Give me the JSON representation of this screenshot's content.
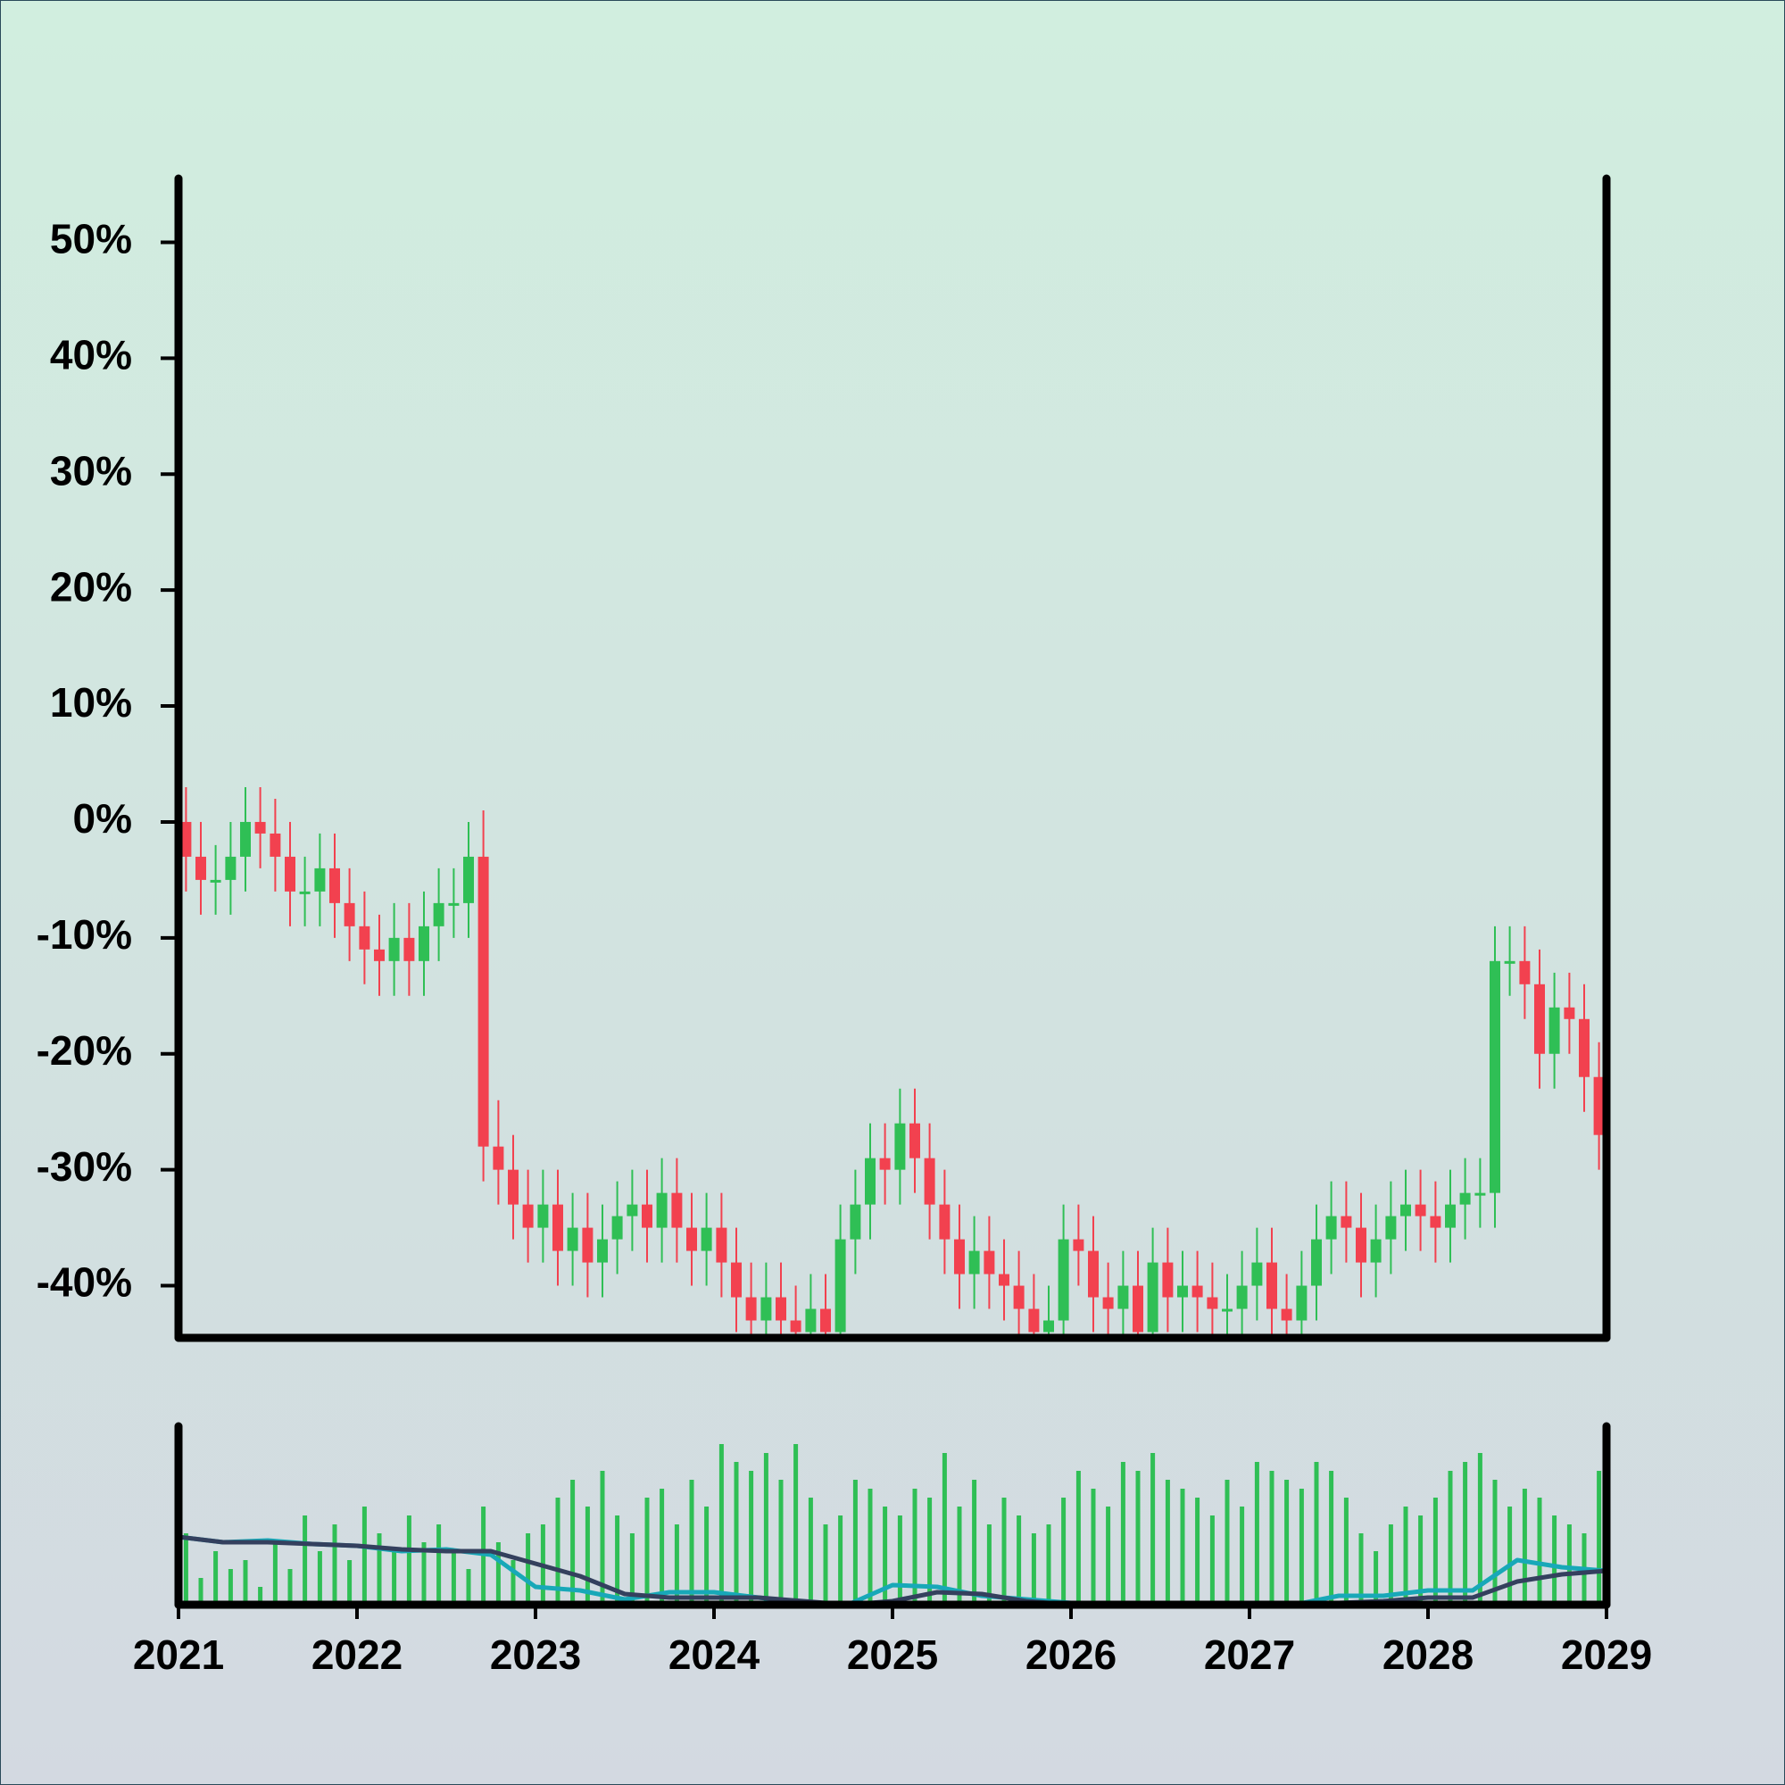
{
  "chart_data": {
    "type": "candlestick",
    "x": [
      2021.042,
      2021.125,
      2021.208,
      2021.292,
      2021.375,
      2021.458,
      2021.542,
      2021.625,
      2021.708,
      2021.792,
      2021.875,
      2021.958,
      2022.042,
      2022.125,
      2022.208,
      2022.292,
      2022.375,
      2022.458,
      2022.542,
      2022.625,
      2022.708,
      2022.792,
      2022.875,
      2022.958,
      2023.042,
      2023.125,
      2023.208,
      2023.292,
      2023.375,
      2023.458,
      2023.542,
      2023.625,
      2023.708,
      2023.792,
      2023.875,
      2023.958,
      2024.042,
      2024.125,
      2024.208,
      2024.292,
      2024.375,
      2024.458,
      2024.542,
      2024.625,
      2024.708,
      2024.792,
      2024.875,
      2024.958,
      2025.042,
      2025.125,
      2025.208,
      2025.292,
      2025.375,
      2025.458,
      2025.542,
      2025.625,
      2025.708,
      2025.792,
      2025.875,
      2025.958,
      2026.042,
      2026.125,
      2026.208,
      2026.292,
      2026.375,
      2026.458,
      2026.542,
      2026.625,
      2026.708,
      2026.792,
      2026.875,
      2026.958,
      2027.042,
      2027.125,
      2027.208,
      2027.292,
      2027.375,
      2027.458,
      2027.542,
      2027.625,
      2027.708,
      2027.792,
      2027.875,
      2027.958,
      2028.042,
      2028.125,
      2028.208,
      2028.292,
      2028.375,
      2028.458,
      2028.542,
      2028.625,
      2028.708,
      2028.792,
      2028.875,
      2028.958
    ],
    "open": [
      0,
      -3,
      -5,
      -5,
      -3,
      0,
      -1,
      -3,
      -6,
      -6,
      -4,
      -7,
      -9,
      -11,
      -12,
      -10,
      -12,
      -9,
      -7,
      -7,
      -3,
      -28,
      -30,
      -33,
      -35,
      -33,
      -37,
      -35,
      -38,
      -36,
      -34,
      -33,
      -35,
      -32,
      -35,
      -37,
      -35,
      -38,
      -41,
      -43,
      -41,
      -43,
      -44,
      -42,
      -44,
      -36,
      -33,
      -29,
      -30,
      -26,
      -29,
      -33,
      -36,
      -39,
      -37,
      -39,
      -40,
      -42,
      -44,
      -43,
      -36,
      -37,
      -41,
      -42,
      -40,
      -44,
      -38,
      -41,
      -40,
      -41,
      -42,
      -42,
      -40,
      -38,
      -42,
      -43,
      -40,
      -36,
      -34,
      -35,
      -38,
      -36,
      -34,
      -33,
      -34,
      -35,
      -33,
      -32,
      -32,
      -12,
      -12,
      -14,
      -20,
      -16,
      -17,
      -22
    ],
    "high": [
      3,
      0,
      -2,
      0,
      3,
      3,
      2,
      0,
      -3,
      -1,
      -1,
      -4,
      -6,
      -8,
      -7,
      -7,
      -6,
      -4,
      -4,
      0,
      1,
      -24,
      -27,
      -30,
      -30,
      -30,
      -32,
      -32,
      -33,
      -31,
      -30,
      -30,
      -29,
      -29,
      -32,
      -32,
      -32,
      -35,
      -38,
      -38,
      -38,
      -40,
      -39,
      -39,
      -33,
      -30,
      -26,
      -26,
      -23,
      -23,
      -26,
      -30,
      -33,
      -34,
      -34,
      -36,
      -37,
      -39,
      -40,
      -33,
      -33,
      -34,
      -38,
      -37,
      -37,
      -35,
      -35,
      -37,
      -37,
      -38,
      -39,
      -37,
      -35,
      -35,
      -39,
      -37,
      -33,
      -31,
      -31,
      -32,
      -33,
      -31,
      -30,
      -30,
      -31,
      -30,
      -29,
      -29,
      -9,
      -9,
      -9,
      -11,
      -13,
      -13,
      -14,
      -19
    ],
    "low": [
      -6,
      -8,
      -8,
      -8,
      -6,
      -4,
      -6,
      -9,
      -9,
      -9,
      -10,
      -12,
      -14,
      -15,
      -15,
      -15,
      -15,
      -12,
      -10,
      -10,
      -31,
      -33,
      -36,
      -38,
      -38,
      -40,
      -40,
      -41,
      -41,
      -39,
      -37,
      -38,
      -38,
      -38,
      -40,
      -40,
      -41,
      -44,
      -46,
      -46,
      -46,
      -47,
      -47,
      -47,
      -47,
      -39,
      -36,
      -33,
      -33,
      -32,
      -36,
      -39,
      -42,
      -42,
      -42,
      -43,
      -45,
      -47,
      -47,
      -46,
      -40,
      -44,
      -45,
      -45,
      -47,
      -47,
      -44,
      -44,
      -44,
      -45,
      -45,
      -45,
      -43,
      -45,
      -46,
      -46,
      -43,
      -39,
      -38,
      -41,
      -41,
      -39,
      -37,
      -37,
      -38,
      -38,
      -36,
      -35,
      -35,
      -15,
      -17,
      -23,
      -23,
      -20,
      -25,
      -30
    ],
    "close": [
      -3,
      -5,
      -5,
      -3,
      0,
      -1,
      -3,
      -6,
      -6,
      -4,
      -7,
      -9,
      -11,
      -12,
      -10,
      -12,
      -9,
      -7,
      -7,
      -3,
      -28,
      -30,
      -33,
      -35,
      -33,
      -37,
      -35,
      -38,
      -36,
      -34,
      -33,
      -35,
      -32,
      -35,
      -37,
      -35,
      -38,
      -41,
      -43,
      -41,
      -43,
      -44,
      -42,
      -44,
      -36,
      -33,
      -29,
      -30,
      -26,
      -29,
      -33,
      -36,
      -39,
      -37,
      -39,
      -40,
      -42,
      -44,
      -43,
      -36,
      -37,
      -41,
      -42,
      -40,
      -44,
      -38,
      -41,
      -40,
      -41,
      -42,
      -42,
      -40,
      -38,
      -42,
      -43,
      -40,
      -36,
      -34,
      -35,
      -38,
      -36,
      -34,
      -33,
      -34,
      -35,
      -33,
      -32,
      -32,
      -12,
      -12,
      -14,
      -20,
      -16,
      -17,
      -22,
      -27
    ],
    "up_color": "#2fbf55",
    "down_color": "#f2414f",
    "xlim": [
      2021,
      2029
    ],
    "xticks": [
      2021,
      2022,
      2023,
      2024,
      2025,
      2026,
      2027,
      2028,
      2029
    ],
    "ylim": [
      -44.5,
      55.5
    ],
    "yticks": [
      {
        "value": -40,
        "label": "-40%"
      },
      {
        "value": -30,
        "label": "-30%"
      },
      {
        "value": -20,
        "label": "-20%"
      },
      {
        "value": -10,
        "label": "-10%"
      },
      {
        "value": 0,
        "label": "0%"
      },
      {
        "value": 10,
        "label": "10%"
      },
      {
        "value": 20,
        "label": "20%"
      },
      {
        "value": 30,
        "label": "30%"
      },
      {
        "value": 40,
        "label": "40%"
      },
      {
        "value": 50,
        "label": "50%"
      }
    ],
    "volume": {
      "color": "#2fbf55",
      "ylim": [
        0,
        100
      ],
      "values": [
        40,
        15,
        30,
        20,
        25,
        10,
        35,
        20,
        50,
        30,
        45,
        25,
        55,
        40,
        30,
        50,
        35,
        45,
        30,
        20,
        55,
        35,
        25,
        40,
        45,
        60,
        70,
        55,
        75,
        50,
        40,
        60,
        65,
        45,
        70,
        55,
        90,
        80,
        75,
        85,
        70,
        90,
        60,
        45,
        50,
        70,
        65,
        55,
        50,
        65,
        60,
        85,
        55,
        70,
        45,
        60,
        50,
        40,
        45,
        60,
        75,
        65,
        55,
        80,
        75,
        85,
        70,
        65,
        60,
        50,
        70,
        55,
        80,
        75,
        70,
        65,
        80,
        75,
        60,
        40,
        30,
        45,
        55,
        50,
        60,
        75,
        80,
        85,
        70,
        55,
        65,
        60,
        50,
        45,
        40,
        75
      ],
      "lines": [
        {
          "color": "#18a8b8",
          "x": [
            2021,
            2021.25,
            2021.5,
            2021.75,
            2022,
            2022.25,
            2022.5,
            2022.75,
            2023,
            2023.25,
            2023.5,
            2023.75,
            2024,
            2024.25,
            2024.5,
            2024.75,
            2025,
            2025.25,
            2025.5,
            2025.75,
            2026,
            2026.25,
            2026.5,
            2026.75,
            2027,
            2027.25,
            2027.5,
            2027.75,
            2028,
            2028.25,
            2028.5,
            2028.75,
            2029
          ],
          "values": [
            38,
            35,
            36,
            34,
            33,
            30,
            31,
            28,
            10,
            8,
            3,
            7,
            7,
            4,
            1,
            0,
            11,
            10,
            5,
            3,
            1,
            1,
            0,
            0,
            0,
            0,
            5,
            5,
            8,
            8,
            25,
            21,
            19
          ]
        },
        {
          "color": "#34405e",
          "x": [
            2021,
            2021.25,
            2021.5,
            2021.75,
            2022,
            2022.25,
            2022.5,
            2022.75,
            2023,
            2023.25,
            2023.5,
            2023.75,
            2024,
            2024.25,
            2024.5,
            2024.75,
            2025,
            2025.25,
            2025.5,
            2025.75,
            2026,
            2026.25,
            2026.5,
            2026.75,
            2027,
            2027.25,
            2027.5,
            2027.75,
            2028,
            2028.25,
            2028.5,
            2028.75,
            2029
          ],
          "values": [
            38,
            35,
            35,
            34,
            33,
            31,
            30,
            30,
            23,
            16,
            6,
            4,
            4,
            4,
            2,
            0,
            2,
            7,
            6,
            2,
            0,
            0,
            0,
            0,
            0,
            0,
            1,
            2,
            4,
            4,
            13,
            17,
            19
          ]
        }
      ]
    }
  }
}
